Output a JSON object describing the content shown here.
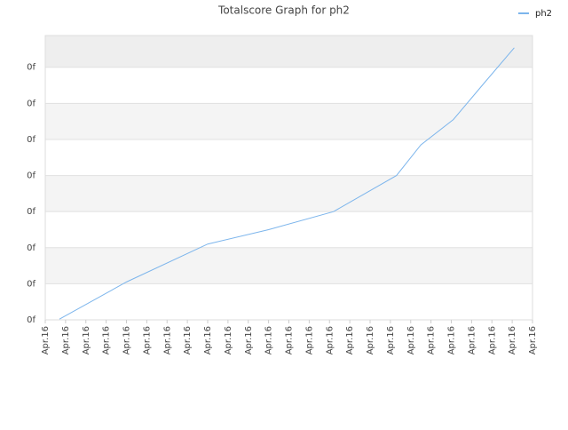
{
  "chart_data": {
    "type": "line",
    "title": "Totalscore Graph for ph2",
    "series": [
      {
        "name": "ph2",
        "color": "#7cb5ec",
        "x": [
          0.7,
          4,
          8,
          11,
          14.2,
          17.3,
          18.5,
          20.1,
          21.6,
          23.1
        ],
        "values": [
          0.02,
          1.05,
          2.1,
          2.5,
          3.0,
          4.0,
          4.85,
          5.55,
          6.55,
          7.54
        ]
      }
    ],
    "xlim": [
      0,
      24
    ],
    "xticks": [
      {
        "value": 0,
        "label": "Apr.16"
      },
      {
        "value": 1,
        "label": "Apr.16"
      },
      {
        "value": 2,
        "label": "Apr.16"
      },
      {
        "value": 3,
        "label": "Apr.16"
      },
      {
        "value": 4,
        "label": "Apr.16"
      },
      {
        "value": 5,
        "label": "Apr.16"
      },
      {
        "value": 6,
        "label": "Apr.16"
      },
      {
        "value": 7,
        "label": "Apr.16"
      },
      {
        "value": 8,
        "label": "Apr.16"
      },
      {
        "value": 9,
        "label": "Apr.16"
      },
      {
        "value": 10,
        "label": "Apr.16"
      },
      {
        "value": 11,
        "label": "Apr.16"
      },
      {
        "value": 12,
        "label": "Apr.16"
      },
      {
        "value": 13,
        "label": "Apr.16"
      },
      {
        "value": 14,
        "label": "Apr.16"
      },
      {
        "value": 15,
        "label": "Apr.16"
      },
      {
        "value": 16,
        "label": "Apr.16"
      },
      {
        "value": 17,
        "label": "Apr.16"
      },
      {
        "value": 18,
        "label": "Apr.16"
      },
      {
        "value": 19,
        "label": "Apr.16"
      },
      {
        "value": 20,
        "label": "Apr.16"
      },
      {
        "value": 21,
        "label": "Apr.16"
      },
      {
        "value": 22,
        "label": "Apr.16"
      },
      {
        "value": 23,
        "label": "Apr.16"
      },
      {
        "value": 24,
        "label": "Apr.16"
      }
    ],
    "ylim": [
      0,
      7.88
    ],
    "yticks": [
      {
        "value": 0,
        "label": "0f"
      },
      {
        "value": 1,
        "label": "0f"
      },
      {
        "value": 2,
        "label": "0f"
      },
      {
        "value": 3,
        "label": "0f"
      },
      {
        "value": 4,
        "label": "0f"
      },
      {
        "value": 5,
        "label": "0f"
      },
      {
        "value": 6,
        "label": "0f"
      },
      {
        "value": 7,
        "label": "0f"
      }
    ],
    "grid": true,
    "legend": "top-right"
  }
}
